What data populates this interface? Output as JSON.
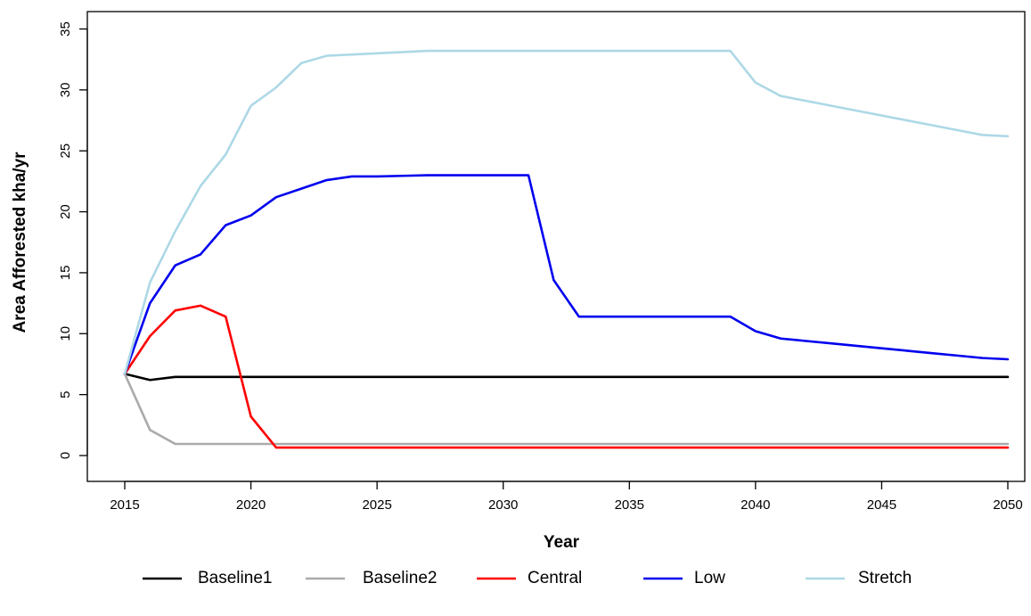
{
  "chart_data": {
    "type": "line",
    "title": "",
    "xlabel": "Year",
    "ylabel": "Area Afforested kha/yr",
    "xlim": [
      2015,
      2050
    ],
    "ylim": [
      0,
      35
    ],
    "x_ticks": [
      "2015",
      "2020",
      "2025",
      "2030",
      "2035",
      "2040",
      "2045",
      "2050"
    ],
    "y_ticks": [
      "0",
      "5",
      "10",
      "15",
      "20",
      "25",
      "30",
      "35"
    ],
    "grid": false,
    "legend_position": "bottom",
    "x": [
      2015,
      2016,
      2017,
      2018,
      2019,
      2020,
      2021,
      2022,
      2023,
      2024,
      2025,
      2026,
      2027,
      2028,
      2029,
      2030,
      2031,
      2032,
      2033,
      2034,
      2035,
      2036,
      2037,
      2038,
      2039,
      2040,
      2041,
      2042,
      2043,
      2044,
      2045,
      2046,
      2047,
      2048,
      2049,
      2050
    ],
    "series": [
      {
        "name": "Baseline1",
        "color": "#000000",
        "values": [
          6.7,
          6.2,
          6.45,
          6.45,
          6.45,
          6.45,
          6.45,
          6.45,
          6.45,
          6.45,
          6.45,
          6.45,
          6.45,
          6.45,
          6.45,
          6.45,
          6.45,
          6.45,
          6.45,
          6.45,
          6.45,
          6.45,
          6.45,
          6.45,
          6.45,
          6.45,
          6.45,
          6.45,
          6.45,
          6.45,
          6.45,
          6.45,
          6.45,
          6.45,
          6.45,
          6.45
        ]
      },
      {
        "name": "Baseline2",
        "color": "#aaaaaa",
        "values": [
          6.7,
          2.1,
          0.95,
          0.95,
          0.95,
          0.95,
          0.95,
          0.95,
          0.95,
          0.95,
          0.95,
          0.95,
          0.95,
          0.95,
          0.95,
          0.95,
          0.95,
          0.95,
          0.95,
          0.95,
          0.95,
          0.95,
          0.95,
          0.95,
          0.95,
          0.95,
          0.95,
          0.95,
          0.95,
          0.95,
          0.95,
          0.95,
          0.95,
          0.95,
          0.95,
          0.95
        ]
      },
      {
        "name": "Central",
        "color": "#ff0000",
        "values": [
          6.7,
          9.8,
          11.9,
          12.3,
          11.4,
          3.2,
          0.65,
          0.65,
          0.65,
          0.65,
          0.65,
          0.65,
          0.65,
          0.65,
          0.65,
          0.65,
          0.65,
          0.65,
          0.65,
          0.65,
          0.65,
          0.65,
          0.65,
          0.65,
          0.65,
          0.65,
          0.65,
          0.65,
          0.65,
          0.65,
          0.65,
          0.65,
          0.65,
          0.65,
          0.65,
          0.65
        ]
      },
      {
        "name": "Low",
        "color": "#0000ee",
        "values": [
          6.7,
          12.5,
          15.6,
          16.5,
          18.9,
          19.7,
          21.2,
          21.9,
          22.6,
          22.9,
          22.9,
          22.95,
          23.0,
          23.0,
          23.0,
          23.0,
          23.0,
          14.4,
          11.4,
          11.4,
          11.4,
          11.4,
          11.4,
          11.4,
          11.4,
          10.2,
          9.6,
          9.4,
          9.2,
          9.0,
          8.8,
          8.6,
          8.4,
          8.2,
          8.0,
          7.9
        ]
      },
      {
        "name": "Stretch",
        "color": "#add8e6",
        "values": [
          6.7,
          14.2,
          18.4,
          22.1,
          24.7,
          28.7,
          30.2,
          32.2,
          32.8,
          32.9,
          33.0,
          33.1,
          33.2,
          33.2,
          33.2,
          33.2,
          33.2,
          33.2,
          33.2,
          33.2,
          33.2,
          33.2,
          33.2,
          33.2,
          33.2,
          30.6,
          29.5,
          29.1,
          28.7,
          28.3,
          27.9,
          27.5,
          27.1,
          26.7,
          26.3,
          26.2
        ]
      }
    ]
  }
}
